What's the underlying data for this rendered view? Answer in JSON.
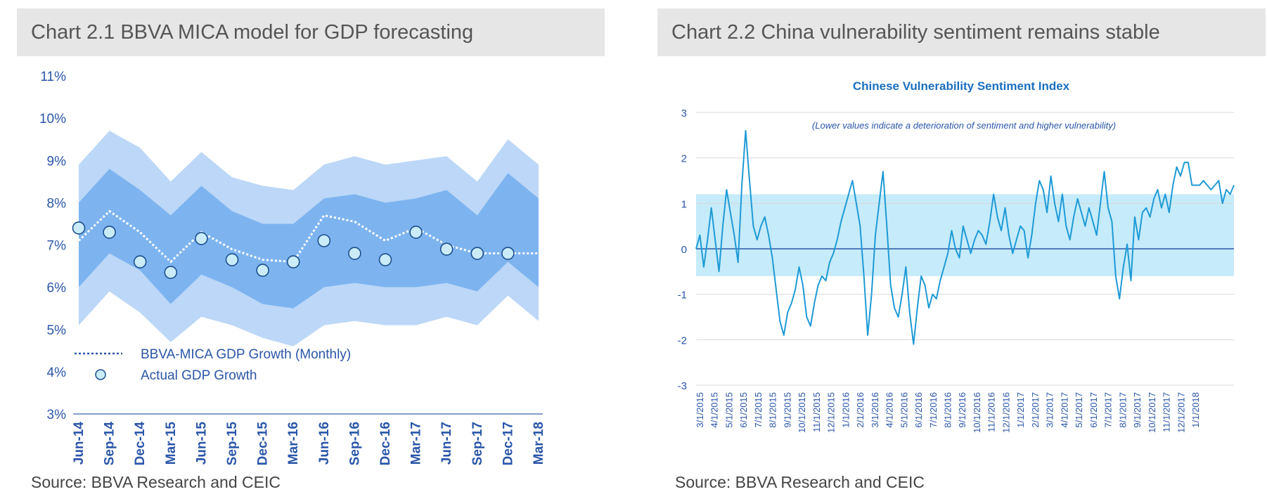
{
  "left": {
    "title": "Chart 2.1 BBVA  MICA  model  for GDP  forecasting",
    "source": "Source: BBVA Research and CEIC",
    "chart_data": {
      "type": "area",
      "categories": [
        "Jun-14",
        "Sep-14",
        "Dec-14",
        "Mar-15",
        "Jun-15",
        "Sep-15",
        "Dec-15",
        "Mar-16",
        "Jun-16",
        "Sep-16",
        "Dec-16",
        "Mar-17",
        "Jun-17",
        "Sep-17",
        "Dec-17",
        "Mar-18"
      ],
      "y_ticks": [
        "3%",
        "4%",
        "5%",
        "6%",
        "7%",
        "8%",
        "9%",
        "10%",
        "11%"
      ],
      "ylim": [
        3,
        11
      ],
      "x": [
        0,
        1,
        2,
        3,
        4,
        5,
        6,
        7,
        8,
        9,
        10,
        11,
        12,
        13,
        14,
        15
      ],
      "series": [
        {
          "name": "BBVA-MICA GDP Growth (Monthly)",
          "values": [
            7.1,
            7.8,
            7.3,
            6.6,
            7.3,
            6.9,
            6.65,
            6.6,
            7.7,
            7.55,
            7.1,
            7.4,
            7.0,
            6.8,
            6.8,
            6.8
          ]
        },
        {
          "name": "Actual GDP Growth",
          "points": [
            [
              0,
              7.4
            ],
            [
              1,
              7.3
            ],
            [
              2,
              6.6
            ],
            [
              3,
              6.35
            ],
            [
              4,
              7.15
            ],
            [
              5,
              6.65
            ],
            [
              6,
              6.4
            ],
            [
              7,
              6.6
            ],
            [
              8,
              7.1
            ],
            [
              9,
              6.8
            ],
            [
              10,
              6.65
            ],
            [
              11,
              7.3
            ],
            [
              12,
              6.9
            ],
            [
              13,
              6.8
            ],
            [
              14,
              6.8
            ]
          ]
        }
      ],
      "bands": {
        "outer_upper": [
          8.9,
          9.7,
          9.3,
          8.5,
          9.2,
          8.6,
          8.4,
          8.3,
          8.9,
          9.1,
          8.9,
          9.0,
          9.1,
          8.5,
          9.5,
          8.9
        ],
        "inner_upper": [
          8.0,
          8.8,
          8.3,
          7.7,
          8.4,
          7.8,
          7.5,
          7.5,
          8.1,
          8.2,
          8.0,
          8.1,
          8.3,
          7.7,
          8.7,
          8.1
        ],
        "inner_lower": [
          6.0,
          6.8,
          6.4,
          5.6,
          6.3,
          6.0,
          5.6,
          5.5,
          6.0,
          6.1,
          6.0,
          6.0,
          6.1,
          5.9,
          6.6,
          6.0
        ],
        "outer_lower": [
          5.1,
          5.9,
          5.4,
          4.7,
          5.3,
          5.1,
          4.8,
          4.6,
          5.1,
          5.2,
          5.1,
          5.1,
          5.3,
          5.1,
          5.8,
          5.2
        ]
      },
      "colors": {
        "outer_band": "#bcd7f7",
        "inner_band": "#7db4f0",
        "marker": "#4aa8d8",
        "axis_text": "#2a56a8"
      },
      "legend": [
        "BBVA-MICA GDP Growth (Monthly)",
        "Actual GDP Growth"
      ]
    }
  },
  "right": {
    "title": "Chart 2.2 China  vulnerability  sentiment  remains  stable",
    "source": "Source: BBVA Research and CEIC",
    "chart_data": {
      "type": "line",
      "title": "Chinese Vulnerability  Sentiment  Index",
      "subtitle": "(Lower values indicate a deterioration of sentiment and higher vulnerability)",
      "y_ticks": [
        "-3",
        "-2",
        "-1",
        "0",
        "1",
        "2",
        "3"
      ],
      "ylim": [
        -3,
        3
      ],
      "x_ticks": [
        "3/1/2015",
        "4/1/2015",
        "5/1/2015",
        "6/1/2015",
        "7/1/2015",
        "8/1/2015",
        "9/1/2015",
        "10/1/2015",
        "11/1/2015",
        "12/1/2015",
        "1/1/2016",
        "2/1/2016",
        "3/1/2016",
        "4/1/2016",
        "5/1/2016",
        "6/1/2016",
        "7/1/2016",
        "8/1/2016",
        "9/1/2016",
        "10/1/2016",
        "11/1/2016",
        "12/1/2016",
        "1/1/2017",
        "2/1/2017",
        "3/1/2017",
        "4/1/2017",
        "5/1/2017",
        "6/1/2017",
        "7/1/2017",
        "8/1/2017",
        "9/1/2017",
        "10/1/2017",
        "11/1/2017",
        "12/1/2017",
        "1/1/2018"
      ],
      "band": [
        -0.6,
        1.2
      ],
      "series": [
        {
          "values": [
            0,
            0.3,
            -0.4,
            0.2,
            0.9,
            0.2,
            -0.5,
            0.5,
            1.3,
            0.8,
            0.3,
            -0.3,
            1.4,
            2.6,
            1.5,
            0.5,
            0.2,
            0.5,
            0.7,
            0.3,
            -0.2,
            -0.9,
            -1.6,
            -1.9,
            -1.4,
            -1.2,
            -0.9,
            -0.4,
            -0.8,
            -1.5,
            -1.7,
            -1.2,
            -0.8,
            -0.6,
            -0.7,
            -0.3,
            -0.1,
            0.2,
            0.6,
            0.9,
            1.2,
            1.5,
            1.0,
            0.5,
            -0.6,
            -1.9,
            -1.0,
            0.3,
            1.0,
            1.7,
            0.5,
            -0.8,
            -1.3,
            -1.5,
            -1.0,
            -0.4,
            -1.4,
            -2.1,
            -1.3,
            -0.6,
            -0.8,
            -1.3,
            -1.0,
            -1.1,
            -0.7,
            -0.4,
            -0.1,
            0.4,
            0.0,
            -0.2,
            0.5,
            0.2,
            -0.1,
            0.2,
            0.4,
            0.3,
            0.1,
            0.6,
            1.2,
            0.7,
            0.4,
            0.9,
            0.3,
            -0.1,
            0.2,
            0.5,
            0.4,
            -0.2,
            0.3,
            1.0,
            1.5,
            1.3,
            0.8,
            1.6,
            1.0,
            0.6,
            1.2,
            0.5,
            0.2,
            0.7,
            1.1,
            0.8,
            0.5,
            0.9,
            0.6,
            0.3,
            1.0,
            1.7,
            0.9,
            0.6,
            -0.6,
            -1.1,
            -0.4,
            0.1,
            -0.7,
            0.7,
            0.2,
            0.8,
            0.9,
            0.7,
            1.1,
            1.3,
            0.9,
            1.2,
            0.8,
            1.4,
            1.8,
            1.6,
            1.9,
            1.9,
            1.4,
            1.4,
            1.4,
            1.5,
            1.4,
            1.3,
            1.4,
            1.5,
            1.0,
            1.3,
            1.2,
            1.4
          ]
        }
      ],
      "colors": {
        "line": "#1e9ad6",
        "band": "#c6ebfa",
        "title": "#1b6fc1",
        "axis_text": "#2a56a8"
      }
    }
  }
}
